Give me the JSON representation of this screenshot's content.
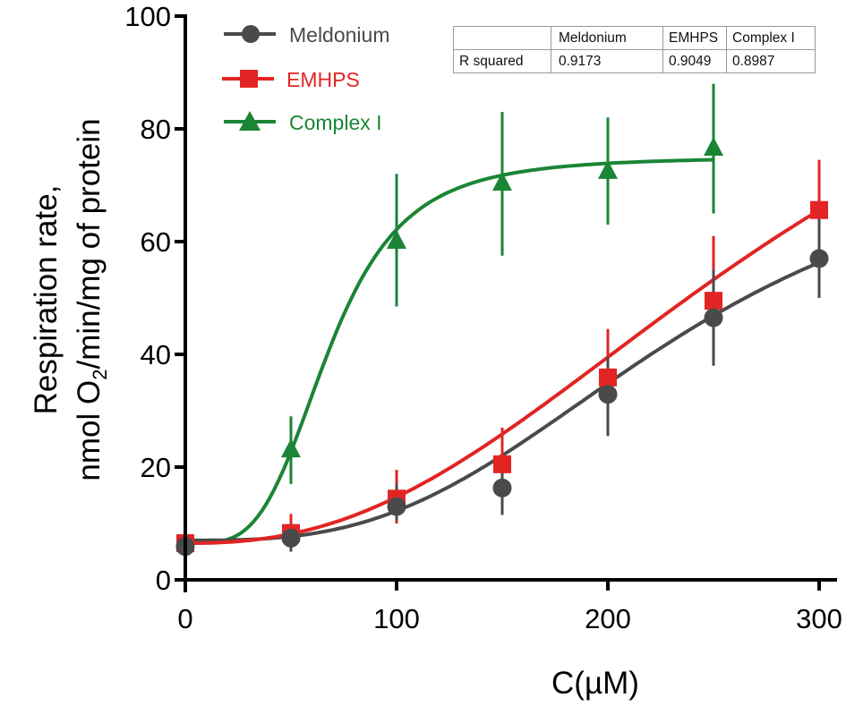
{
  "chart_data": {
    "type": "line",
    "title": "",
    "xlabel": "C(µM)",
    "ylabel_line1": "Respiration rate,",
    "ylabel_line2_prefix": "nmol O",
    "ylabel_line2_sub": "2",
    "ylabel_line2_suffix": "/min/mg of protein",
    "xlim": [
      0,
      300
    ],
    "ylim": [
      0,
      100
    ],
    "xticks": [
      0,
      100,
      200,
      300
    ],
    "yticks": [
      0,
      20,
      40,
      60,
      80,
      100
    ],
    "grid": false,
    "legend_position": "top-left",
    "series": [
      {
        "name": "Meldonium",
        "color": "#4a4a4a",
        "marker": "circle",
        "x": [
          0,
          50,
          100,
          150,
          200,
          250,
          300
        ],
        "y": [
          5.9,
          7.4,
          13.0,
          16.3,
          32.9,
          46.5,
          57.0
        ],
        "err_low": [
          5.0,
          5.0,
          10.5,
          11.5,
          25.5,
          38.0,
          50.0
        ],
        "err_high": [
          7.0,
          10.0,
          17.0,
          21.0,
          39.5,
          55.0,
          64.0
        ],
        "fit": {
          "bottom": 7.0,
          "top": 80.0,
          "ec50": 235,
          "hill": 3.0
        }
      },
      {
        "name": "EMHPS",
        "color": "#e32424",
        "marker": "square",
        "x": [
          0,
          50,
          100,
          150,
          200,
          250,
          300
        ],
        "y": [
          6.5,
          8.3,
          14.4,
          20.5,
          35.9,
          49.5,
          65.6
        ],
        "err_low": [
          5.5,
          6.0,
          10.0,
          14.0,
          29.0,
          38.0,
          57.0
        ],
        "err_high": [
          8.5,
          11.7,
          19.5,
          27.0,
          44.5,
          61.0,
          74.5
        ],
        "fit": {
          "bottom": 6.5,
          "top": 120.0,
          "ec50": 290,
          "hill": 2.4
        }
      },
      {
        "name": "Complex I",
        "color": "#1a8535",
        "marker": "triangle",
        "x": [
          50,
          100,
          150,
          200,
          250
        ],
        "y": [
          23.0,
          60.0,
          70.3,
          72.4,
          76.5
        ],
        "err_low": [
          17.0,
          48.5,
          57.5,
          63.0,
          65.0
        ],
        "err_high": [
          29.0,
          72.0,
          83.0,
          82.0,
          88.0
        ],
        "fit": {
          "bottom": 6.5,
          "top": 75.0,
          "ec50": 68,
          "hill": 3.8,
          "xmax": 250
        }
      }
    ]
  },
  "rsquared_table": {
    "header": [
      "",
      "Meldonium",
      "EMHPS",
      "Complex I"
    ],
    "row_label": "R squared",
    "values": [
      "0.9173",
      "0.9049",
      "0.8987"
    ]
  }
}
